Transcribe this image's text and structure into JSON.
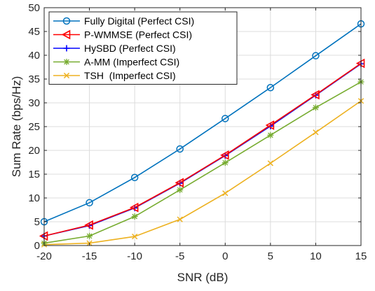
{
  "chart_data": {
    "type": "line",
    "title": "",
    "xlabel": "SNR (dB)",
    "ylabel": "Sum Rate (bps/Hz)",
    "xlim": [
      -20,
      15
    ],
    "ylim": [
      0,
      50
    ],
    "xticks": [
      -20,
      -15,
      -10,
      -5,
      0,
      5,
      10,
      15
    ],
    "yticks": [
      0,
      5,
      10,
      15,
      20,
      25,
      30,
      35,
      40,
      45,
      50
    ],
    "grid": true,
    "legend_position": "top-left",
    "x": [
      -20,
      -15,
      -10,
      -5,
      0,
      5,
      10,
      15
    ],
    "series": [
      {
        "name": "Fully Digital (Perfect CSI)",
        "color": "#0072BD",
        "marker": "circle",
        "values": [
          5.0,
          9.0,
          14.3,
          20.3,
          26.7,
          33.2,
          39.9,
          46.6
        ]
      },
      {
        "name": "P-WMMSE (Perfect CSI)",
        "color": "#FF0000",
        "marker": "triangle-left",
        "values": [
          2.0,
          4.3,
          8.0,
          13.2,
          19.0,
          25.3,
          31.7,
          38.3
        ]
      },
      {
        "name": "HySBD (Perfect CSI)",
        "color": "#0000FF",
        "marker": "plus",
        "values": [
          2.0,
          4.2,
          7.9,
          13.1,
          18.9,
          25.1,
          31.6,
          38.2
        ]
      },
      {
        "name": "A-MM (Imperfect CSI)",
        "color": "#77AC30",
        "marker": "asterisk",
        "values": [
          0.5,
          2.0,
          6.1,
          11.7,
          17.4,
          23.2,
          29.0,
          34.4
        ]
      },
      {
        "name": "TSH  (Imperfect CSI)",
        "color": "#EDB120",
        "marker": "x",
        "values": [
          0.2,
          0.5,
          1.9,
          5.5,
          11.0,
          17.3,
          23.8,
          30.4
        ]
      }
    ]
  }
}
